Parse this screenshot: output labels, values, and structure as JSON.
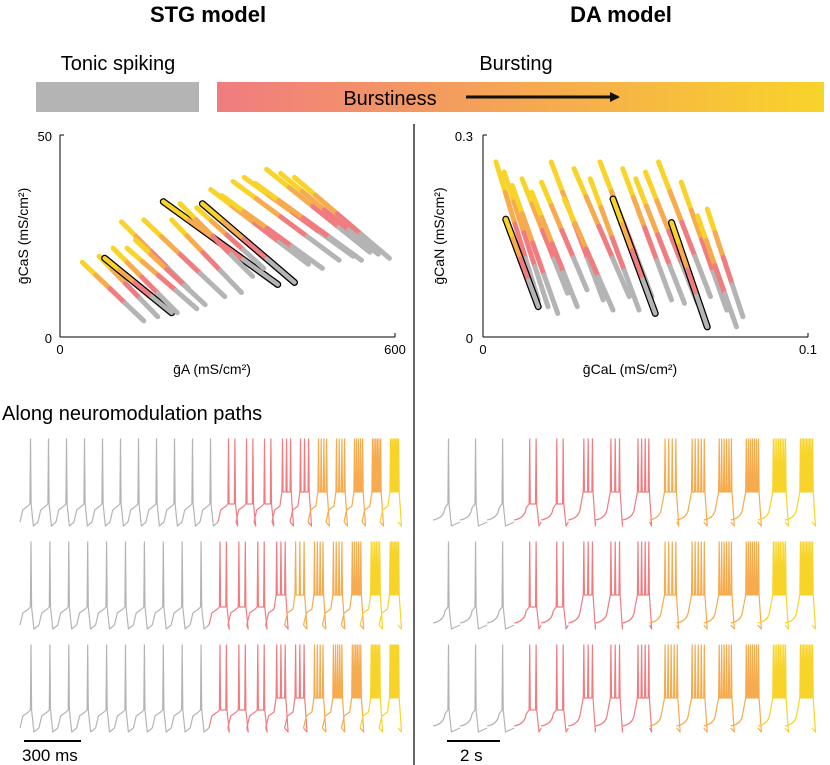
{
  "headers": {
    "left": "STG model",
    "right": "DA model"
  },
  "legend": {
    "tonic_label": "Tonic spiking",
    "bursting_label": "Bursting",
    "gradient_label": "Burstiness",
    "colors": {
      "gray": "#b4b4b4",
      "salmon": "#f07c80",
      "orange": "#f6ab4e",
      "yellow": "#f8d42a"
    }
  },
  "section_label": "Along neuromodulation paths",
  "chart_data": [
    {
      "id": "stg-scatter",
      "type": "scatter",
      "title": "STG model",
      "xlabel": "ḡA (mS/cm²)",
      "ylabel": "ḡCaS (mS/cm²)",
      "xlim": [
        0,
        600
      ],
      "ylim": [
        0,
        50
      ],
      "xticks": [
        "0",
        "600"
      ],
      "yticks": [
        "0",
        "50"
      ],
      "note": "Each path is a line segment from high-conductance start (yellow/orange, bursting) to low end (gray, tonic). Highlighted paths outlined in black.",
      "paths": [
        {
          "x0": 40,
          "y0": 18.5,
          "x1": 150,
          "y1": 4,
          "hl": false
        },
        {
          "x0": 70,
          "y0": 20,
          "x1": 175,
          "y1": 5,
          "hl": false
        },
        {
          "x0": 80,
          "y0": 19.5,
          "x1": 200,
          "y1": 6,
          "hl": true
        },
        {
          "x0": 95,
          "y0": 22,
          "x1": 210,
          "y1": 6,
          "hl": false
        },
        {
          "x0": 110,
          "y0": 28.5,
          "x1": 230,
          "y1": 12,
          "hl": false
        },
        {
          "x0": 120,
          "y0": 22,
          "x1": 245,
          "y1": 7,
          "hl": false
        },
        {
          "x0": 135,
          "y0": 24,
          "x1": 260,
          "y1": 8,
          "hl": false
        },
        {
          "x0": 150,
          "y0": 29,
          "x1": 295,
          "y1": 10,
          "hl": false
        },
        {
          "x0": 185,
          "y0": 33.5,
          "x1": 390,
          "y1": 13,
          "hl": true
        },
        {
          "x0": 200,
          "y0": 29,
          "x1": 325,
          "y1": 11,
          "hl": false
        },
        {
          "x0": 215,
          "y0": 33,
          "x1": 345,
          "y1": 15,
          "hl": false
        },
        {
          "x0": 245,
          "y0": 32,
          "x1": 365,
          "y1": 17,
          "hl": false
        },
        {
          "x0": 255,
          "y0": 33,
          "x1": 420,
          "y1": 13.5,
          "hl": true
        },
        {
          "x0": 270,
          "y0": 36.5,
          "x1": 445,
          "y1": 18,
          "hl": false
        },
        {
          "x0": 290,
          "y0": 35,
          "x1": 470,
          "y1": 17,
          "hl": false
        },
        {
          "x0": 310,
          "y0": 38.5,
          "x1": 500,
          "y1": 19,
          "hl": false
        },
        {
          "x0": 330,
          "y0": 39.5,
          "x1": 525,
          "y1": 20,
          "hl": false
        },
        {
          "x0": 350,
          "y0": 38,
          "x1": 540,
          "y1": 19,
          "hl": false
        },
        {
          "x0": 370,
          "y0": 41.5,
          "x1": 555,
          "y1": 21,
          "hl": false
        },
        {
          "x0": 395,
          "y0": 40.5,
          "x1": 570,
          "y1": 20.5,
          "hl": false
        },
        {
          "x0": 420,
          "y0": 39.5,
          "x1": 590,
          "y1": 19.5,
          "hl": false
        }
      ]
    },
    {
      "id": "da-scatter",
      "type": "scatter",
      "title": "DA model",
      "xlabel": "ḡCaL (mS/cm²)",
      "ylabel": "ḡCaN (mS/cm²)",
      "xlim": [
        0,
        0.1
      ],
      "ylim": [
        0,
        0.3
      ],
      "xticks": [
        "0",
        "0.1"
      ],
      "yticks": [
        "0",
        "0.3"
      ],
      "note": "Paths from high ḡCaN (bursting, yellow) down to low (tonic, gray). Highlighted paths outlined in black.",
      "paths": [
        {
          "x0": 0.004,
          "y0": 0.26,
          "x1": 0.017,
          "y1": 0.055,
          "hl": false
        },
        {
          "x0": 0.0065,
          "y0": 0.245,
          "x1": 0.02,
          "y1": 0.045,
          "hl": false
        },
        {
          "x0": 0.007,
          "y0": 0.175,
          "x1": 0.017,
          "y1": 0.045,
          "hl": true
        },
        {
          "x0": 0.009,
          "y0": 0.225,
          "x1": 0.023,
          "y1": 0.035,
          "hl": false
        },
        {
          "x0": 0.012,
          "y0": 0.235,
          "x1": 0.026,
          "y1": 0.065,
          "hl": false
        },
        {
          "x0": 0.015,
          "y0": 0.215,
          "x1": 0.029,
          "y1": 0.045,
          "hl": false
        },
        {
          "x0": 0.018,
          "y0": 0.23,
          "x1": 0.032,
          "y1": 0.07,
          "hl": false
        },
        {
          "x0": 0.021,
          "y0": 0.26,
          "x1": 0.037,
          "y1": 0.055,
          "hl": false
        },
        {
          "x0": 0.025,
          "y0": 0.205,
          "x1": 0.04,
          "y1": 0.04,
          "hl": false
        },
        {
          "x0": 0.028,
          "y0": 0.25,
          "x1": 0.045,
          "y1": 0.06,
          "hl": false
        },
        {
          "x0": 0.033,
          "y0": 0.235,
          "x1": 0.048,
          "y1": 0.04,
          "hl": false
        },
        {
          "x0": 0.036,
          "y0": 0.26,
          "x1": 0.052,
          "y1": 0.06,
          "hl": false
        },
        {
          "x0": 0.04,
          "y0": 0.205,
          "x1": 0.053,
          "y1": 0.035,
          "hl": true
        },
        {
          "x0": 0.043,
          "y0": 0.25,
          "x1": 0.058,
          "y1": 0.055,
          "hl": false
        },
        {
          "x0": 0.047,
          "y0": 0.235,
          "x1": 0.062,
          "y1": 0.05,
          "hl": false
        },
        {
          "x0": 0.05,
          "y0": 0.245,
          "x1": 0.066,
          "y1": 0.05,
          "hl": false
        },
        {
          "x0": 0.054,
          "y0": 0.26,
          "x1": 0.07,
          "y1": 0.06,
          "hl": false
        },
        {
          "x0": 0.058,
          "y0": 0.17,
          "x1": 0.069,
          "y1": 0.015,
          "hl": true
        },
        {
          "x0": 0.061,
          "y0": 0.23,
          "x1": 0.075,
          "y1": 0.04,
          "hl": false
        },
        {
          "x0": 0.066,
          "y0": 0.18,
          "x1": 0.078,
          "y1": 0.015,
          "hl": false
        },
        {
          "x0": 0.069,
          "y0": 0.19,
          "x1": 0.08,
          "y1": 0.03,
          "hl": false
        }
      ]
    },
    {
      "id": "stg-traces",
      "type": "line",
      "title": "Along neuromodulation paths",
      "scalebar": "300 ms",
      "note": "Voltage traces; spike groups colored by burstiness. Count = spikes per burst.",
      "rows": [
        [
          {
            "n": 1,
            "c": "gray"
          },
          {
            "n": 1,
            "c": "gray"
          },
          {
            "n": 1,
            "c": "gray"
          },
          {
            "n": 1,
            "c": "gray"
          },
          {
            "n": 1,
            "c": "gray"
          },
          {
            "n": 1,
            "c": "gray"
          },
          {
            "n": 1,
            "c": "gray"
          },
          {
            "n": 1,
            "c": "gray"
          },
          {
            "n": 1,
            "c": "gray"
          },
          {
            "n": 1,
            "c": "gray"
          },
          {
            "n": 1,
            "c": "gray"
          },
          {
            "n": 2,
            "c": "salmon"
          },
          {
            "n": 2,
            "c": "salmon"
          },
          {
            "n": 2,
            "c": "salmon"
          },
          {
            "n": 3,
            "c": "salmon"
          },
          {
            "n": 3,
            "c": "salmon"
          },
          {
            "n": 4,
            "c": "orange"
          },
          {
            "n": 4,
            "c": "orange"
          },
          {
            "n": 5,
            "c": "orange"
          },
          {
            "n": 6,
            "c": "orange"
          },
          {
            "n": 7,
            "c": "yellow"
          }
        ],
        [
          {
            "n": 1,
            "c": "gray"
          },
          {
            "n": 1,
            "c": "gray"
          },
          {
            "n": 1,
            "c": "gray"
          },
          {
            "n": 1,
            "c": "gray"
          },
          {
            "n": 1,
            "c": "gray"
          },
          {
            "n": 1,
            "c": "gray"
          },
          {
            "n": 1,
            "c": "gray"
          },
          {
            "n": 1,
            "c": "gray"
          },
          {
            "n": 1,
            "c": "gray"
          },
          {
            "n": 1,
            "c": "gray"
          },
          {
            "n": 2,
            "c": "salmon"
          },
          {
            "n": 2,
            "c": "salmon"
          },
          {
            "n": 2,
            "c": "salmon"
          },
          {
            "n": 3,
            "c": "salmon"
          },
          {
            "n": 3,
            "c": "orange"
          },
          {
            "n": 4,
            "c": "orange"
          },
          {
            "n": 4,
            "c": "orange"
          },
          {
            "n": 5,
            "c": "orange"
          },
          {
            "n": 6,
            "c": "yellow"
          },
          {
            "n": 7,
            "c": "yellow"
          }
        ],
        [
          {
            "n": 1,
            "c": "gray"
          },
          {
            "n": 1,
            "c": "gray"
          },
          {
            "n": 1,
            "c": "gray"
          },
          {
            "n": 1,
            "c": "gray"
          },
          {
            "n": 1,
            "c": "gray"
          },
          {
            "n": 1,
            "c": "gray"
          },
          {
            "n": 1,
            "c": "gray"
          },
          {
            "n": 1,
            "c": "gray"
          },
          {
            "n": 1,
            "c": "gray"
          },
          {
            "n": 1,
            "c": "gray"
          },
          {
            "n": 2,
            "c": "salmon"
          },
          {
            "n": 2,
            "c": "salmon"
          },
          {
            "n": 2,
            "c": "salmon"
          },
          {
            "n": 3,
            "c": "salmon"
          },
          {
            "n": 3,
            "c": "salmon"
          },
          {
            "n": 4,
            "c": "orange"
          },
          {
            "n": 5,
            "c": "orange"
          },
          {
            "n": 6,
            "c": "orange"
          },
          {
            "n": 7,
            "c": "yellow"
          },
          {
            "n": 8,
            "c": "yellow"
          }
        ]
      ]
    },
    {
      "id": "da-traces",
      "type": "line",
      "scalebar": "2 s",
      "rows": [
        [
          {
            "n": 1,
            "c": "gray"
          },
          {
            "n": 1,
            "c": "gray"
          },
          {
            "n": 1,
            "c": "gray"
          },
          {
            "n": 2,
            "c": "salmon"
          },
          {
            "n": 2,
            "c": "salmon"
          },
          {
            "n": 3,
            "c": "salmon"
          },
          {
            "n": 3,
            "c": "salmon"
          },
          {
            "n": 4,
            "c": "salmon"
          },
          {
            "n": 4,
            "c": "orange"
          },
          {
            "n": 5,
            "c": "orange"
          },
          {
            "n": 6,
            "c": "orange"
          },
          {
            "n": 7,
            "c": "orange"
          },
          {
            "n": 8,
            "c": "yellow"
          },
          {
            "n": 9,
            "c": "yellow"
          }
        ],
        [
          {
            "n": 1,
            "c": "gray"
          },
          {
            "n": 1,
            "c": "gray"
          },
          {
            "n": 1,
            "c": "gray"
          },
          {
            "n": 2,
            "c": "salmon"
          },
          {
            "n": 2,
            "c": "salmon"
          },
          {
            "n": 3,
            "c": "salmon"
          },
          {
            "n": 3,
            "c": "salmon"
          },
          {
            "n": 4,
            "c": "salmon"
          },
          {
            "n": 4,
            "c": "orange"
          },
          {
            "n": 5,
            "c": "orange"
          },
          {
            "n": 6,
            "c": "orange"
          },
          {
            "n": 7,
            "c": "orange"
          },
          {
            "n": 8,
            "c": "yellow"
          },
          {
            "n": 9,
            "c": "yellow"
          }
        ],
        [
          {
            "n": 1,
            "c": "gray"
          },
          {
            "n": 1,
            "c": "gray"
          },
          {
            "n": 1,
            "c": "gray"
          },
          {
            "n": 2,
            "c": "salmon"
          },
          {
            "n": 2,
            "c": "salmon"
          },
          {
            "n": 3,
            "c": "salmon"
          },
          {
            "n": 3,
            "c": "salmon"
          },
          {
            "n": 4,
            "c": "salmon"
          },
          {
            "n": 5,
            "c": "orange"
          },
          {
            "n": 5,
            "c": "orange"
          },
          {
            "n": 6,
            "c": "orange"
          },
          {
            "n": 7,
            "c": "orange"
          },
          {
            "n": 8,
            "c": "yellow"
          },
          {
            "n": 9,
            "c": "yellow"
          }
        ]
      ]
    }
  ]
}
